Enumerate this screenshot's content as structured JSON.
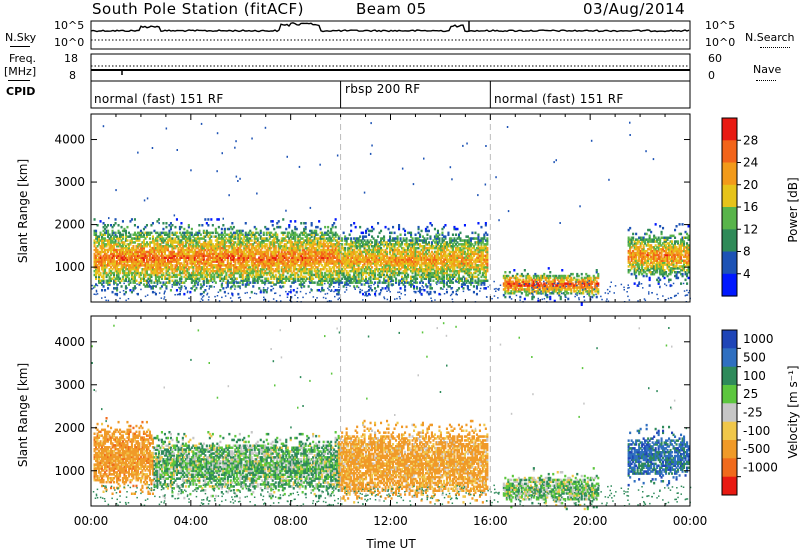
{
  "header": {
    "station": "South Pole Station (fitACF)",
    "beam": "Beam 05",
    "date": "03/Aug/2014"
  },
  "strips": {
    "nsky": {
      "label": "N.Sky",
      "ticks_left": [
        "10^5",
        "10^0"
      ],
      "ticks_right": [
        "10^5",
        "10^0"
      ],
      "right_label": "N.Search"
    },
    "freq": {
      "label_line1": "Freq.",
      "label_line2": "[MHz]",
      "ticks_left": [
        "18",
        "8"
      ],
      "ticks_right": [
        "60",
        "0"
      ],
      "right_label": "Nave"
    },
    "cpid": {
      "label": "CPID",
      "segments": [
        "normal (fast) 151 RF",
        "rbsp 200 RF",
        "normal (fast) 151 RF"
      ]
    }
  },
  "chart_data": [
    {
      "type": "heatmap",
      "panel": "power",
      "ylabel": "Slant Range [km]",
      "ylim": [
        180,
        4600
      ],
      "yticks": [
        "1000",
        "2000",
        "3000",
        "4000"
      ],
      "x_range_hours": [
        0,
        24
      ],
      "colorbar": {
        "label": "Power [dB]",
        "ticks": [
          "4",
          "8",
          "12",
          "16",
          "20",
          "24",
          "28"
        ],
        "colors": [
          "#0018ff",
          "#1d53b5",
          "#2f8a58",
          "#58b44a",
          "#e6c31a",
          "#f29a1a",
          "#f2641a",
          "#e81a12"
        ]
      },
      "regions": [
        {
          "t0": 0.1,
          "t1": 9.9,
          "r0": 600,
          "r1": 1800,
          "level": 25
        },
        {
          "t0": 9.9,
          "t1": 15.9,
          "r0": 600,
          "r1": 1700,
          "level": 22
        },
        {
          "t0": 16.5,
          "t1": 20.3,
          "r0": 350,
          "r1": 800,
          "level": 28
        },
        {
          "t0": 21.5,
          "t1": 23.9,
          "r0": 800,
          "r1": 1700,
          "level": 24
        }
      ]
    },
    {
      "type": "heatmap",
      "panel": "velocity",
      "ylabel": "Slant Range [km]",
      "ylim": [
        180,
        4600
      ],
      "yticks": [
        "1000",
        "2000",
        "3000",
        "4000"
      ],
      "x_range_hours": [
        0,
        24
      ],
      "xticks": [
        "00:00",
        "04:00",
        "08:00",
        "12:00",
        "16:00",
        "20:00",
        "00:00"
      ],
      "xlabel": "Time UT",
      "colorbar": {
        "label": "Velocity [m s⁻¹]",
        "ticks": [
          "1000",
          "500",
          "100",
          "25",
          "-25",
          "-100",
          "-500",
          "-1000"
        ],
        "colors": [
          "#1f45b7",
          "#2f6fc0",
          "#2e8a5a",
          "#5cc63e",
          "#c6c6c6",
          "#f0c74a",
          "#f09a28",
          "#f06a1c",
          "#e81a12"
        ]
      },
      "regions": [
        {
          "t0": 0.1,
          "t1": 2.5,
          "r0": 700,
          "r1": 1900,
          "velocity": -300
        },
        {
          "t0": 2.5,
          "t1": 9.9,
          "r0": 600,
          "r1": 1600,
          "velocity": 80
        },
        {
          "t0": 9.9,
          "t1": 15.9,
          "r0": 500,
          "r1": 1800,
          "velocity": -200
        },
        {
          "t0": 16.5,
          "t1": 20.3,
          "r0": 300,
          "r1": 800,
          "velocity": 50
        },
        {
          "t0": 21.5,
          "t1": 23.9,
          "r0": 900,
          "r1": 1700,
          "velocity": 700
        }
      ]
    }
  ]
}
